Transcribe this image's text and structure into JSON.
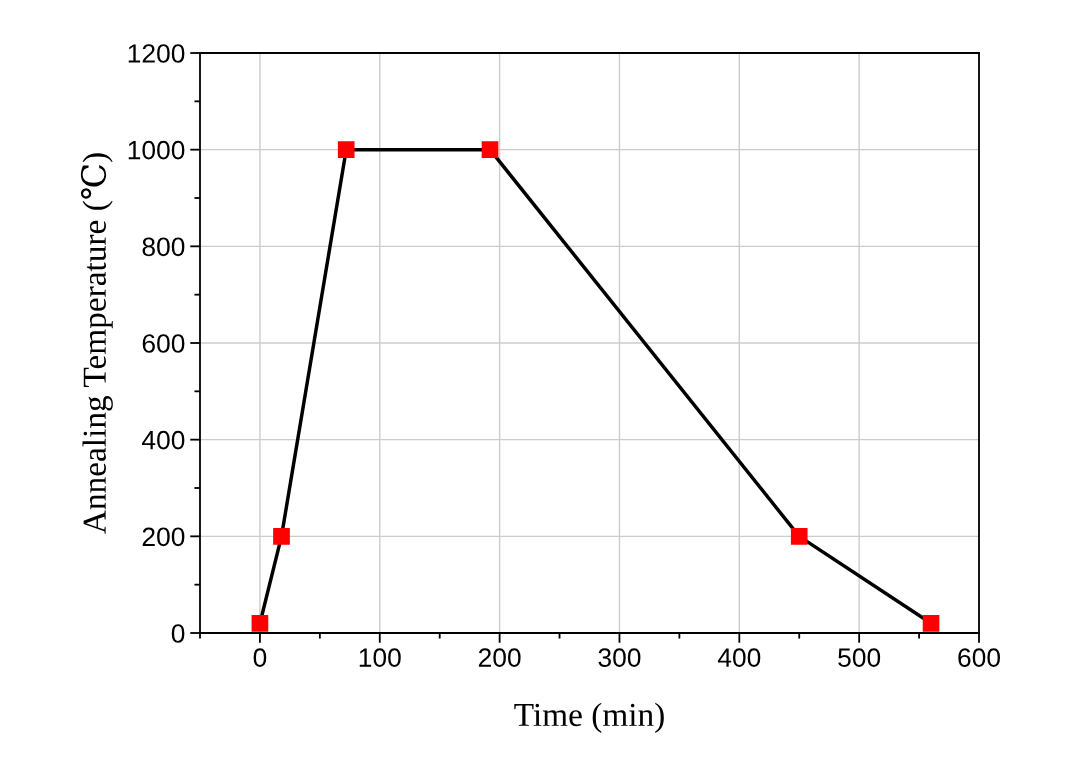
{
  "chart_data": {
    "type": "line",
    "xlabel": "Time (min)",
    "ylabel": "Annealing Temperature (℃)",
    "x": [
      0,
      18,
      72,
      192,
      450,
      560
    ],
    "series": [
      {
        "color": "#000000",
        "colors": [
          "#ff0000",
          "#ff0000",
          "#ff0000",
          "#ff0000",
          "#ff0000",
          "#ff0000"
        ],
        "values": [
          20,
          200,
          1000,
          1000,
          200,
          20
        ]
      }
    ],
    "marker": "square",
    "line_style": "solid",
    "grid": true,
    "xlim": [
      -50,
      600
    ],
    "xticks": [
      0,
      100,
      200,
      300,
      400,
      500,
      600
    ],
    "ylim": [
      0,
      1200
    ],
    "yticks": [
      0,
      200,
      400,
      600,
      800,
      1000,
      1200
    ]
  }
}
